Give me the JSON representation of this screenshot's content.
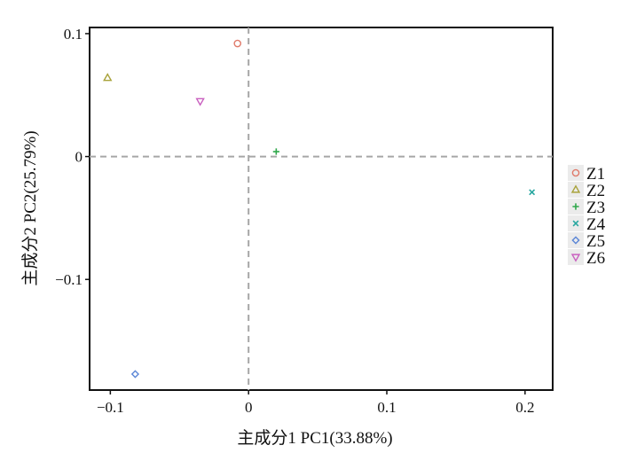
{
  "chart_data": {
    "type": "scatter",
    "title": "",
    "xlabel": "主成分1 PC1(33.88%)",
    "ylabel": "主成分2 PC2(25.79%)",
    "xlim": [
      -0.115,
      0.22
    ],
    "ylim": [
      -0.19,
      0.105
    ],
    "xticks": [
      -0.1,
      0,
      0.1,
      0.2
    ],
    "xtick_labels": [
      "−0.1",
      "0",
      "0.1",
      "0.2"
    ],
    "yticks": [
      0.1,
      0,
      -0.1
    ],
    "ytick_labels": [
      "0.1",
      "0",
      "−0.1"
    ],
    "reference_lines": {
      "x": 0,
      "y": 0,
      "style": "dashed",
      "color": "#a6a6a6"
    },
    "grid": false,
    "legend_position": "right",
    "series": [
      {
        "name": "Z1",
        "marker": "circle",
        "color": "#e07a6a",
        "x": [
          -0.008
        ],
        "y": [
          0.092
        ]
      },
      {
        "name": "Z2",
        "marker": "triangle-up",
        "color": "#a8a23a",
        "x": [
          -0.102
        ],
        "y": [
          0.064
        ]
      },
      {
        "name": "Z3",
        "marker": "plus",
        "color": "#2ea84a",
        "x": [
          0.02
        ],
        "y": [
          0.004
        ]
      },
      {
        "name": "Z4",
        "marker": "cross",
        "color": "#27a7a0",
        "x": [
          0.205
        ],
        "y": [
          -0.029
        ]
      },
      {
        "name": "Z5",
        "marker": "diamond",
        "color": "#5b86d6",
        "x": [
          -0.082
        ],
        "y": [
          -0.177
        ]
      },
      {
        "name": "Z6",
        "marker": "triangle-down",
        "color": "#c95fbf",
        "x": [
          -0.035
        ],
        "y": [
          0.045
        ]
      }
    ]
  }
}
